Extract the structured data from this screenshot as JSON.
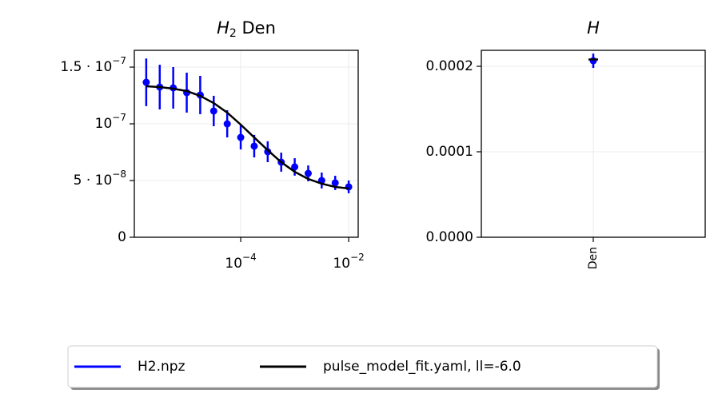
{
  "chart_data": [
    {
      "type": "errorbar",
      "title": {
        "base": "H",
        "sub": "2",
        "rest": " Den"
      },
      "xscale": "log",
      "grid": true,
      "x": [
        1.778e-06,
        3.162e-06,
        5.623e-06,
        1e-05,
        1.778e-05,
        3.162e-05,
        5.623e-05,
        0.0001,
        0.0001778,
        0.0003162,
        0.0005623,
        0.001,
        0.001778,
        0.003162,
        0.005623,
        0.01
      ],
      "xlim": [
        1.07e-06,
        0.015
      ],
      "xticks": [
        {
          "value": 0.0001,
          "label": "10",
          "exponent": "−4"
        },
        {
          "value": 0.01,
          "label": "10",
          "exponent": "−2"
        }
      ],
      "ylim": [
        0,
        1.648e-07
      ],
      "yticks": [
        0,
        {
          "value": 5e-08,
          "label": "5 · 10",
          "exponent": "−8"
        },
        {
          "value": 1e-07,
          "label": "10",
          "exponent": "−7"
        },
        {
          "value": 1.5e-07,
          "label": "1.5 · 10",
          "exponent": "−7"
        }
      ],
      "series": [
        {
          "name": "H2.npz",
          "color": "#0000ff",
          "kind": "errorbar",
          "values": [
            1.366e-07,
            1.324e-07,
            1.317e-07,
            1.275e-07,
            1.254e-07,
            1.113e-07,
            1e-07,
            8.8e-08,
            8.03e-08,
            7.54e-08,
            6.62e-08,
            6.2e-08,
            5.63e-08,
            5e-08,
            4.79e-08,
            4.44e-08
          ],
          "errors": [
            2.1e-08,
            1.97e-08,
            1.83e-08,
            1.76e-08,
            1.69e-08,
            1.34e-08,
            1.2e-08,
            1.06e-08,
            9.9e-09,
            9.2e-09,
            8.4e-09,
            7.7e-09,
            7e-09,
            7e-09,
            6.3e-09,
            5.6e-09
          ]
        },
        {
          "name": "pulse_model_fit.yaml, ll=-6.0",
          "color": "#000000",
          "kind": "line",
          "values": [
            1.331e-07,
            1.324e-07,
            1.31e-07,
            1.289e-07,
            1.246e-07,
            1.183e-07,
            1.099e-07,
            9.93e-08,
            8.8e-08,
            7.68e-08,
            6.62e-08,
            5.77e-08,
            5.14e-08,
            4.72e-08,
            4.44e-08,
            4.3e-08
          ]
        }
      ]
    },
    {
      "type": "errorbar",
      "title": {
        "base": "H"
      },
      "grid": true,
      "categories": [
        "Den"
      ],
      "ylim": [
        0,
        0.0002187
      ],
      "yticks": [
        {
          "value": 0,
          "label": "0.0000"
        },
        {
          "value": 0.0001,
          "label": "0.0001"
        },
        {
          "value": 0.0002,
          "label": "0.0002"
        }
      ],
      "series": [
        {
          "color": "#0000ff",
          "kind": "errorbar",
          "values": [
            0.0002065
          ],
          "errors": [
            8.4e-06
          ]
        },
        {
          "color": "#000000",
          "kind": "line",
          "values": [
            0.000208
          ]
        }
      ]
    }
  ]
}
